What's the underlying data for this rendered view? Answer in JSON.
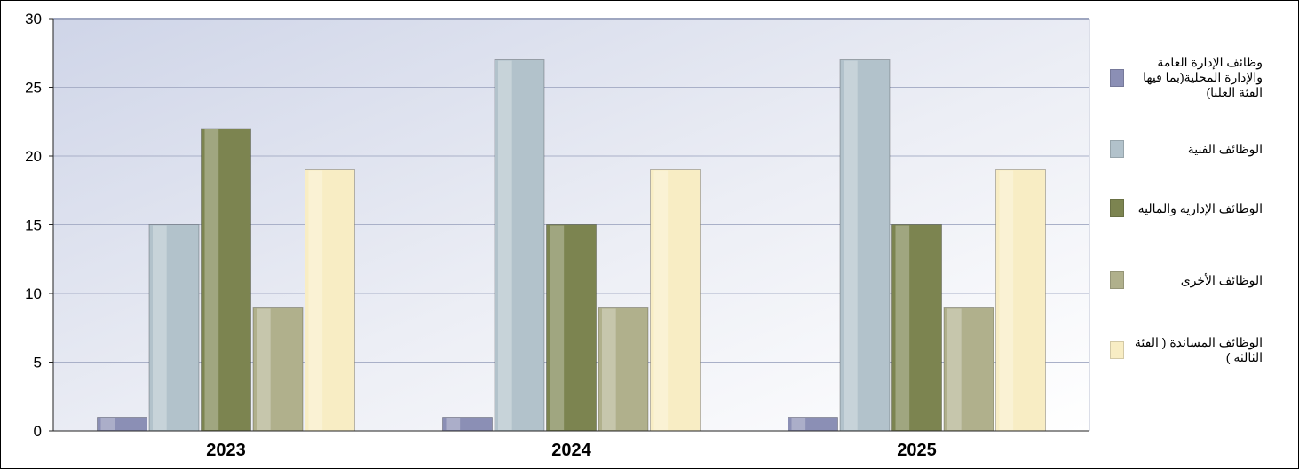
{
  "chart_data": {
    "type": "bar",
    "categories": [
      "2023",
      "2024",
      "2025"
    ],
    "series": [
      {
        "name": "وظائف الإدارة العامة والإدارة المحلية(بما فيها الفئة العليا)",
        "values": [
          1,
          1,
          1
        ],
        "color": "#8b8fb5"
      },
      {
        "name": "الوظائف الفنية",
        "values": [
          15,
          27,
          27
        ],
        "color": "#b2c2cb"
      },
      {
        "name": "الوظائف الإدارية والمالية",
        "values": [
          22,
          15,
          15
        ],
        "color": "#7c8450"
      },
      {
        "name": "الوظائف الأخرى",
        "values": [
          9,
          9,
          9
        ],
        "color": "#b0b08c"
      },
      {
        "name": "الوظائف المساندة ( الفئة الثالثة )",
        "values": [
          19,
          19,
          19
        ],
        "color": "#f8edc4"
      }
    ],
    "yticks": [
      0,
      5,
      10,
      15,
      20,
      25,
      30
    ],
    "ylim": [
      0,
      30
    ],
    "grid": true,
    "legend_position": "right"
  }
}
